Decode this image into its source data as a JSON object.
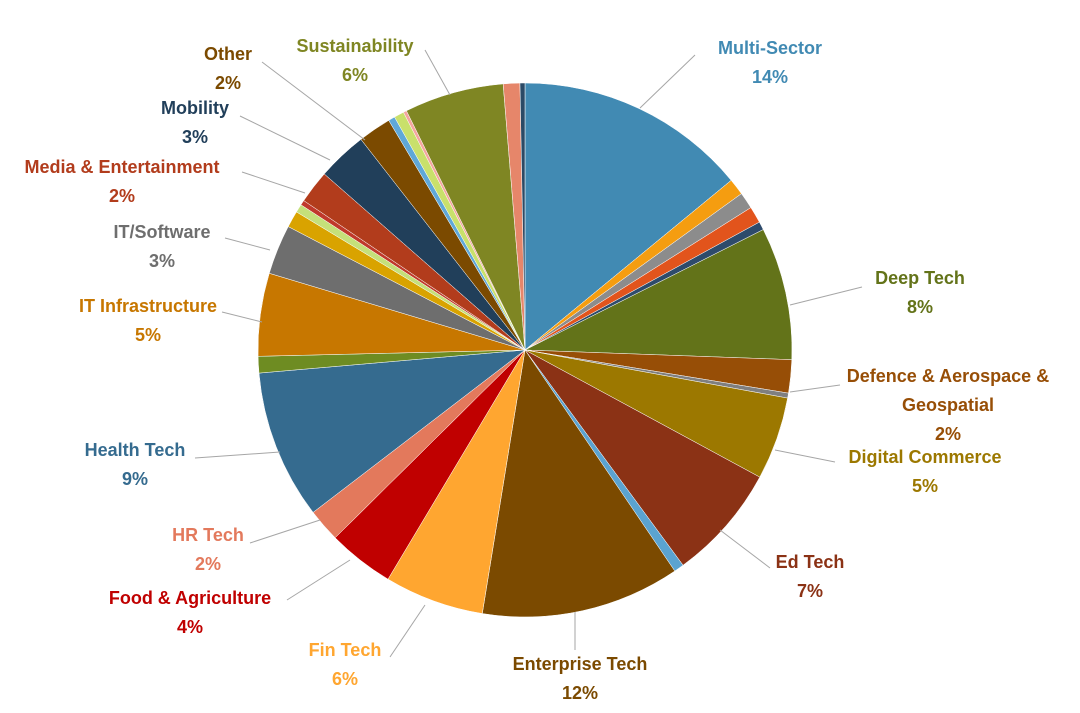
{
  "chart_data": {
    "type": "pie",
    "categories": [
      "Multi-Sector",
      null,
      null,
      null,
      null,
      "Deep Tech",
      "Defence & Aerospace & Geospatial",
      null,
      "Digital Commerce",
      "Ed Tech",
      null,
      "Enterprise Tech",
      "Fin Tech",
      "Food & Agriculture",
      "HR Tech",
      "Health Tech",
      null,
      "IT Infrastructure",
      "IT/Software",
      null,
      null,
      null,
      "Media & Entertainment",
      "Mobility",
      "Other",
      null,
      null,
      null,
      "Sustainability",
      null,
      null
    ],
    "values": [
      14,
      1,
      1,
      1,
      0.5,
      8,
      2,
      0.3,
      5,
      7,
      0.6,
      12,
      6,
      4,
      2,
      9,
      1,
      5,
      3,
      1,
      0.5,
      0.3,
      2,
      3,
      2,
      0.4,
      0.6,
      0.2,
      6,
      1,
      0.3
    ],
    "value_labels": [
      "14%",
      null,
      null,
      null,
      null,
      "8%",
      "2%",
      null,
      "5%",
      "7%",
      null,
      "12%",
      "6%",
      "4%",
      "2%",
      "9%",
      null,
      "5%",
      "3%",
      null,
      null,
      null,
      "2%",
      "3%",
      "2%",
      null,
      null,
      null,
      "6%",
      null,
      null
    ],
    "colors": [
      "#418ab3",
      "#f59d10",
      "#8c8c8c",
      "#e2541c",
      "#2e4b6b",
      "#637319",
      "#974e06",
      "#7f7f7f",
      "#9c7800",
      "#8b3215",
      "#5ba3d0",
      "#7b4a00",
      "#ffa630",
      "#c00000",
      "#e3795c",
      "#356b8f",
      "#6e8c22",
      "#c77700",
      "#6e6e6e",
      "#d9a300",
      "#c5e07a",
      "#c0392b",
      "#b23c1c",
      "#213f5a",
      "#7b4a00",
      "#5fa8d8",
      "#c9e06b",
      "#f4a6a0",
      "#7f8623",
      "#e6866a",
      "#2b4a66"
    ]
  }
}
